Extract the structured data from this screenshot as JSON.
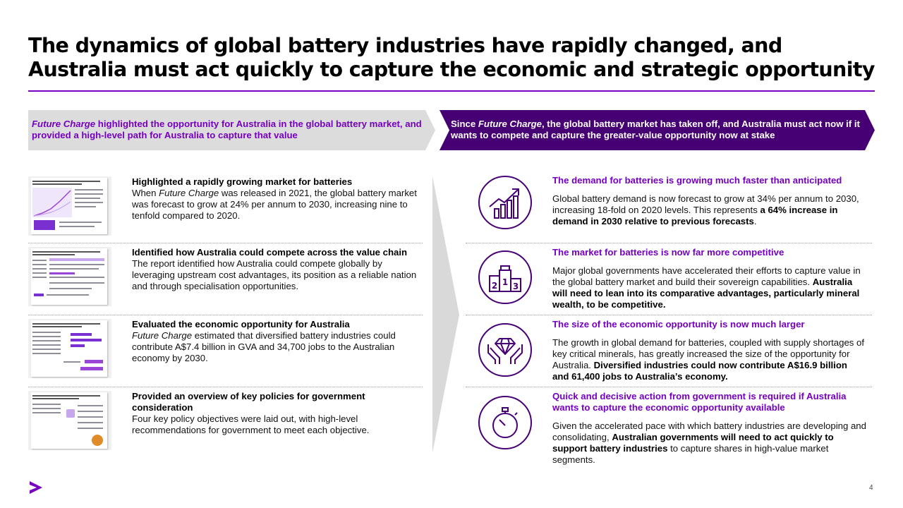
{
  "title": "The dynamics of global battery industries have rapidly changed, and Australia must act quickly to capture the economic and strategic opportunity",
  "banner_left": {
    "em": "Future Charge",
    "text": " highlighted the opportunity for Australia in the global battery market, and provided a high-level path for Australia to capture that value"
  },
  "banner_right": {
    "pre": "Since ",
    "em": "Future Charge",
    "text": ", the global battery market has taken off, and Australia must act now if it wants to compete and capture the greater-value opportunity now at stake"
  },
  "left_items": [
    {
      "heading": "Highlighted a rapidly growing market for batteries",
      "body_pre": "When ",
      "body_em": "Future Charge",
      "body_post": " was released in 2021, the global battery market was forecast to grow at 24% per annum to 2030, increasing nine to tenfold compared to 2020."
    },
    {
      "heading": "Identified how Australia could compete across the value chain",
      "body": "The report identified how Australia could compete globally by leveraging upstream cost advantages, its position as a reliable nation and through specialisation opportunities."
    },
    {
      "heading": "Evaluated the economic opportunity for Australia",
      "body_em": "Future Charge",
      "body_post": " estimated that diversified battery industries could contribute A$7.4 billion in GVA and 34,700 jobs to the Australian economy by 2030."
    },
    {
      "heading": "Provided an overview of key policies for government consideration",
      "body": "Four key policy objectives were laid out, with high-level recommendations for government to meet each objective."
    }
  ],
  "right_items": [
    {
      "icon": "growth-chart-icon",
      "heading": "The demand for batteries is growing much faster than anticipated",
      "body": "Global battery demand is now forecast to grow at 34% per annum to 2030, increasing 18-fold on 2020 levels. This represents ",
      "body_bold": "a 64% increase in demand in 2030 relative to previous forecasts",
      "body_post": "."
    },
    {
      "icon": "podium-icon",
      "heading": "The market for batteries is now far more competitive",
      "body": "Major global governments have accelerated their efforts to capture value in the global battery market and build their sovereign capabilities. ",
      "body_bold": "Australia will need to lean into its comparative advantages, particularly mineral wealth, to be competitive.",
      "body_post": ""
    },
    {
      "icon": "hands-diamond-icon",
      "heading": "The size of the economic opportunity is now much larger",
      "body": "The growth in global demand for batteries, coupled with supply shortages of key critical minerals, has greatly increased the size of the opportunity for Australia. ",
      "body_bold": "Diversified industries could now contribute A$16.9 billion and 61,400 jobs to Australia’s economy.",
      "body_post": ""
    },
    {
      "icon": "stopwatch-icon",
      "heading": "Quick and decisive action from government is required if Australia wants to capture the economic opportunity available",
      "body": "Given the accelerated pace with which battery industries are developing and consolidating, ",
      "body_bold": "Australian governments will need to act quickly to support battery industries",
      "body_post": " to capture shares in high-value market segments."
    }
  ],
  "podium_labels": [
    "2",
    "1",
    "3"
  ],
  "page_number": "4",
  "colors": {
    "purple": "#7500c0",
    "dark_purple": "#460073",
    "grey": "#dcdcdc"
  }
}
